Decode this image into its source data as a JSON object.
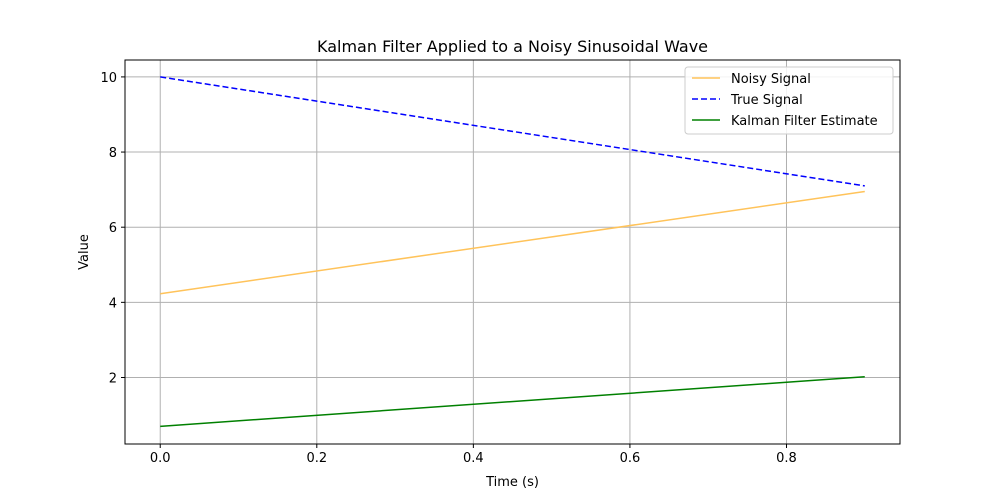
{
  "chart_data": {
    "type": "line",
    "title": "Kalman Filter Applied to a Noisy Sinusoidal Wave",
    "xlabel": "Time (s)",
    "ylabel": "Value",
    "xlim": [
      -0.045,
      0.945
    ],
    "ylim": [
      0.23,
      10.45
    ],
    "xticks": [
      "0.0",
      "0.2",
      "0.4",
      "0.6",
      "0.8"
    ],
    "yticks": [
      "2",
      "4",
      "6",
      "8",
      "10"
    ],
    "grid": true,
    "legend_position": "top-right",
    "series": [
      {
        "name": "Noisy Signal",
        "color": "#ffc35a",
        "line_style": "solid",
        "x": [
          0.0,
          0.9
        ],
        "y": [
          4.23,
          6.95
        ]
      },
      {
        "name": "True Signal",
        "color": "#0000ff",
        "line_style": "dashed",
        "x": [
          0.0,
          0.9
        ],
        "y": [
          10.0,
          7.1
        ]
      },
      {
        "name": "Kalman Filter Estimate",
        "color": "#008000",
        "line_style": "solid",
        "x": [
          0.0,
          0.9
        ],
        "y": [
          0.7,
          2.02
        ]
      }
    ]
  }
}
